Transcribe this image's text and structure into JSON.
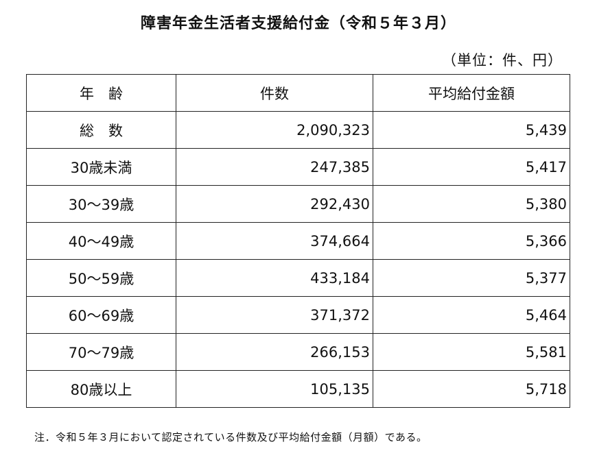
{
  "title": "障害年金生活者支援給付金（令和５年３月）",
  "unit_label": "（単位：件、円）",
  "table": {
    "headers": [
      "年　齢",
      "件数",
      "平均給付金額"
    ],
    "rows": [
      {
        "age": "総　数",
        "count": "2,090,323",
        "average": "5,439"
      },
      {
        "age": "30歳未満",
        "count": "247,385",
        "average": "5,417"
      },
      {
        "age": "30～39歳",
        "count": "292,430",
        "average": "5,380"
      },
      {
        "age": "40～49歳",
        "count": "374,664",
        "average": "5,366"
      },
      {
        "age": "50～59歳",
        "count": "433,184",
        "average": "5,377"
      },
      {
        "age": "60～69歳",
        "count": "371,372",
        "average": "5,464"
      },
      {
        "age": "70～79歳",
        "count": "266,153",
        "average": "5,581"
      },
      {
        "age": "80歳以上",
        "count": "105,135",
        "average": "5,718"
      }
    ]
  },
  "note": "注．令和５年３月において認定されている件数及び平均給付金額（月額）である。"
}
